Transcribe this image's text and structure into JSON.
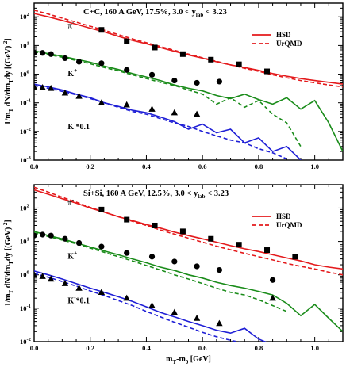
{
  "chart_data": [
    {
      "type": "line",
      "title": "C+C, 160 A GeV, 17.5%, 3.0 < y_lab < 3.23",
      "title_parts": {
        "main": "C+C, 160 A GeV, 17.5%, 3.0 < y",
        "sub": "lab",
        "tail": " < 3.23"
      },
      "xlabel": "m_T-m_0 [GeV]",
      "ylabel": "1/m_T dN/dm_T dy [(GeV)^-2]",
      "ylabel_parts": {
        "a": "1/m",
        "s1": "T",
        "b": " dN/dm",
        "s2": "T",
        "c": "dy [(GeV)",
        "sup": "-2",
        "d": "]"
      },
      "xlim": [
        0,
        1.1
      ],
      "ylim": [
        0.001,
        300
      ],
      "yscale": "log",
      "xticks": [
        "0.0",
        "0.2",
        "0.4",
        "0.6",
        "0.8",
        "1.0"
      ],
      "ytick_exponents": [
        "-3",
        "-2",
        "-1",
        "0",
        "1",
        "2"
      ],
      "show_xticklabels": true,
      "show_xlabel": false,
      "legend": {
        "placement": "top-right",
        "entries": [
          {
            "label": "HSD",
            "style": "solid",
            "color": "#e41a1c"
          },
          {
            "label": "UrQMD",
            "style": "dashed",
            "color": "#e41a1c"
          }
        ]
      },
      "series": [
        {
          "name": "π-",
          "label_main": "π",
          "label_sup": "-",
          "color": "#e41a1c",
          "marker": "square",
          "label_pos": [
            0.12,
            40
          ],
          "data_x": [
            0.24,
            0.33,
            0.43,
            0.53,
            0.63,
            0.73,
            0.83
          ],
          "data_y": [
            35,
            14,
            8.5,
            5.0,
            3.2,
            2.2,
            1.25
          ],
          "hsd_x": [
            0.0,
            0.05,
            0.1,
            0.15,
            0.2,
            0.25,
            0.3,
            0.35,
            0.4,
            0.45,
            0.5,
            0.55,
            0.6,
            0.65,
            0.7,
            0.75,
            0.8,
            0.85,
            0.9,
            0.95,
            1.0,
            1.05,
            1.1
          ],
          "hsd_y": [
            130,
            100,
            75,
            55,
            40,
            30,
            21,
            15,
            11.5,
            8.5,
            6.3,
            4.7,
            3.6,
            2.7,
            2.1,
            1.7,
            1.35,
            1.05,
            0.85,
            0.7,
            0.6,
            0.52,
            0.45
          ],
          "urqmd_x": [
            0.0,
            0.05,
            0.1,
            0.15,
            0.2,
            0.25,
            0.3,
            0.35,
            0.4,
            0.45,
            0.5,
            0.55,
            0.6,
            0.65,
            0.7,
            0.75,
            0.8,
            0.85,
            0.9,
            0.95,
            1.0,
            1.05,
            1.1
          ],
          "urqmd_y": [
            170,
            125,
            90,
            65,
            47,
            34,
            24,
            17,
            12.5,
            9.2,
            6.8,
            5.0,
            3.7,
            2.8,
            2.1,
            1.6,
            1.25,
            0.95,
            0.75,
            0.6,
            0.5,
            0.42,
            0.36
          ]
        },
        {
          "name": "K+",
          "label_main": "K",
          "label_sup": "+",
          "color": "#1a8c1a",
          "marker": "circle",
          "label_pos": [
            0.12,
            0.85
          ],
          "data_x": [
            0.0,
            0.03,
            0.06,
            0.11,
            0.16,
            0.24,
            0.33,
            0.42,
            0.5,
            0.58,
            0.66
          ],
          "data_y": [
            5.5,
            5.5,
            5.0,
            3.6,
            2.7,
            2.4,
            1.4,
            0.95,
            0.6,
            0.5,
            0.55
          ],
          "hsd_x": [
            0.0,
            0.05,
            0.1,
            0.15,
            0.2,
            0.25,
            0.3,
            0.35,
            0.4,
            0.45,
            0.5,
            0.55,
            0.6,
            0.65,
            0.7,
            0.75,
            0.8,
            0.85,
            0.9,
            0.95,
            1.0,
            1.05,
            1.1
          ],
          "hsd_y": [
            6.5,
            5.2,
            4.2,
            3.3,
            2.6,
            1.9,
            1.45,
            1.05,
            0.8,
            0.6,
            0.42,
            0.32,
            0.26,
            0.18,
            0.14,
            0.2,
            0.13,
            0.09,
            0.15,
            0.06,
            0.12,
            0.02,
            0.002
          ],
          "urqmd_x": [
            0.0,
            0.05,
            0.1,
            0.15,
            0.2,
            0.25,
            0.3,
            0.35,
            0.4,
            0.45,
            0.5,
            0.55,
            0.6,
            0.65,
            0.7,
            0.75,
            0.8,
            0.85,
            0.9,
            0.95
          ],
          "urqmd_y": [
            6.0,
            4.8,
            3.9,
            3.0,
            2.3,
            1.7,
            1.3,
            0.95,
            0.7,
            0.52,
            0.4,
            0.28,
            0.2,
            0.09,
            0.15,
            0.07,
            0.12,
            0.04,
            0.02,
            0.003
          ]
        },
        {
          "name": "K-*0.1",
          "label_main": "K",
          "label_sup": "-",
          "label_tail": "*0.1",
          "color": "#1f1fd6",
          "marker": "triangle",
          "label_pos": [
            0.12,
            0.012
          ],
          "data_x": [
            0.0,
            0.03,
            0.06,
            0.11,
            0.16,
            0.24,
            0.33,
            0.42,
            0.5,
            0.58
          ],
          "data_y": [
            0.36,
            0.34,
            0.32,
            0.22,
            0.17,
            0.1,
            0.085,
            0.06,
            0.045,
            0.04
          ],
          "hsd_x": [
            0.0,
            0.05,
            0.1,
            0.15,
            0.2,
            0.25,
            0.3,
            0.35,
            0.4,
            0.45,
            0.5,
            0.55,
            0.6,
            0.65,
            0.7,
            0.75,
            0.8,
            0.85,
            0.9,
            0.95
          ],
          "hsd_y": [
            0.45,
            0.36,
            0.28,
            0.2,
            0.15,
            0.1,
            0.075,
            0.055,
            0.045,
            0.032,
            0.022,
            0.012,
            0.018,
            0.009,
            0.012,
            0.004,
            0.006,
            0.002,
            0.003,
            0.001
          ],
          "urqmd_x": [
            0.0,
            0.05,
            0.1,
            0.15,
            0.2,
            0.25,
            0.3,
            0.35,
            0.4,
            0.45,
            0.5,
            0.55,
            0.6,
            0.65,
            0.7,
            0.75,
            0.8,
            0.85,
            0.9
          ],
          "urqmd_y": [
            0.4,
            0.32,
            0.25,
            0.19,
            0.14,
            0.1,
            0.07,
            0.05,
            0.04,
            0.028,
            0.02,
            0.015,
            0.01,
            0.007,
            0.005,
            0.004,
            0.0025,
            0.0018,
            0.0011
          ]
        }
      ]
    },
    {
      "type": "line",
      "title": "Si+Si, 160 A GeV, 12.5%, 3.0 < y_lab < 3.23",
      "title_parts": {
        "main": "Si+Si, 160 A GeV, 12.5%, 3.0 < y",
        "sub": "lab",
        "tail": " < 3.23"
      },
      "xlabel": "m_T-m_0 [GeV]",
      "xlabel_parts": {
        "a": "m",
        "s1": "T",
        "b": "-m",
        "s2": "0",
        "c": " [GeV]"
      },
      "ylabel": "1/m_T dN/dm_T dy [(GeV)^-2]",
      "ylabel_parts": {
        "a": "1/m",
        "s1": "T",
        "b": " dN/dm",
        "s2": "T",
        "c": "dy [(GeV)",
        "sup": "-2",
        "d": "]"
      },
      "xlim": [
        0,
        1.1
      ],
      "ylim": [
        0.01,
        500
      ],
      "yscale": "log",
      "xticks": [
        "0.0",
        "0.2",
        "0.4",
        "0.6",
        "0.8",
        "1.0"
      ],
      "ytick_exponents": [
        "-2",
        "-1",
        "0",
        "1",
        "2"
      ],
      "show_xticklabels": true,
      "show_xlabel": true,
      "legend": {
        "placement": "top-right",
        "entries": [
          {
            "label": "HSD",
            "style": "solid",
            "color": "#e41a1c"
          },
          {
            "label": "UrQMD",
            "style": "dashed",
            "color": "#e41a1c"
          }
        ]
      },
      "series": [
        {
          "name": "π-",
          "label_main": "π",
          "label_sup": "-",
          "color": "#e41a1c",
          "marker": "square",
          "label_pos": [
            0.12,
            120
          ],
          "data_x": [
            0.24,
            0.33,
            0.43,
            0.53,
            0.63,
            0.73,
            0.83,
            0.93
          ],
          "data_y": [
            90,
            45,
            30,
            20,
            12,
            8,
            5.5,
            3.5
          ],
          "hsd_x": [
            0.0,
            0.05,
            0.1,
            0.15,
            0.2,
            0.25,
            0.3,
            0.35,
            0.4,
            0.45,
            0.5,
            0.55,
            0.6,
            0.65,
            0.7,
            0.75,
            0.8,
            0.85,
            0.9,
            0.95,
            1.0,
            1.05,
            1.1
          ],
          "hsd_y": [
            350,
            260,
            190,
            140,
            100,
            75,
            55,
            42,
            32,
            25,
            19,
            15,
            12,
            9.5,
            7.5,
            6,
            5,
            4,
            3.2,
            2.6,
            2.0,
            1.7,
            1.5
          ],
          "urqmd_x": [
            0.0,
            0.05,
            0.1,
            0.15,
            0.2,
            0.25,
            0.3,
            0.35,
            0.4,
            0.45,
            0.5,
            0.55,
            0.6,
            0.65,
            0.7,
            0.75,
            0.8,
            0.85,
            0.9,
            0.95,
            1.0,
            1.05,
            1.1
          ],
          "urqmd_y": [
            420,
            300,
            210,
            150,
            105,
            76,
            55,
            40,
            30,
            22,
            16.5,
            12.5,
            9.5,
            7.2,
            5.6,
            4.4,
            3.5,
            2.8,
            2.2,
            1.8,
            1.5,
            1.2,
            1.0
          ]
        },
        {
          "name": "K+",
          "label_main": "K",
          "label_sup": "+",
          "color": "#1a8c1a",
          "marker": "circle",
          "label_pos": [
            0.12,
            3.0
          ],
          "data_x": [
            0.0,
            0.03,
            0.06,
            0.11,
            0.16,
            0.24,
            0.33,
            0.42,
            0.5,
            0.58,
            0.66,
            0.85
          ],
          "data_y": [
            15,
            16,
            15,
            12,
            9,
            7,
            4.5,
            3.5,
            2.5,
            1.8,
            1.4,
            0.7
          ],
          "hsd_x": [
            0.0,
            0.05,
            0.1,
            0.15,
            0.2,
            0.25,
            0.3,
            0.35,
            0.4,
            0.45,
            0.5,
            0.55,
            0.6,
            0.65,
            0.7,
            0.75,
            0.8,
            0.85,
            0.9,
            0.95,
            1.0,
            1.05,
            1.1
          ],
          "hsd_y": [
            20,
            15,
            12,
            9,
            6.8,
            5.2,
            4,
            3,
            2.3,
            1.7,
            1.35,
            1.0,
            0.8,
            0.6,
            0.48,
            0.4,
            0.32,
            0.25,
            0.14,
            0.06,
            0.13,
            0.05,
            0.02
          ],
          "urqmd_x": [
            0.0,
            0.05,
            0.1,
            0.15,
            0.2,
            0.25,
            0.3,
            0.35,
            0.4,
            0.45,
            0.5,
            0.55,
            0.6,
            0.65,
            0.7,
            0.75,
            0.8,
            0.85,
            0.9
          ],
          "urqmd_y": [
            18,
            14,
            11,
            8.5,
            6.3,
            4.7,
            3.5,
            2.6,
            1.9,
            1.4,
            1.0,
            0.75,
            0.55,
            0.4,
            0.3,
            0.25,
            0.18,
            0.12,
            0.08
          ]
        },
        {
          "name": "K-*0.1",
          "label_main": "K",
          "label_sup": "-",
          "label_tail": "*0.1",
          "color": "#1f1fd6",
          "marker": "triangle",
          "label_pos": [
            0.12,
            0.14
          ],
          "data_x": [
            0.0,
            0.03,
            0.06,
            0.11,
            0.16,
            0.24,
            0.33,
            0.42,
            0.5,
            0.58,
            0.66,
            0.85
          ],
          "data_y": [
            1.0,
            0.9,
            0.75,
            0.55,
            0.4,
            0.3,
            0.2,
            0.12,
            0.075,
            0.05,
            0.035,
            0.2
          ],
          "hsd_x": [
            0.0,
            0.05,
            0.1,
            0.15,
            0.2,
            0.25,
            0.3,
            0.35,
            0.4,
            0.45,
            0.5,
            0.55,
            0.6,
            0.65,
            0.7,
            0.75,
            0.8,
            0.85
          ],
          "hsd_y": [
            1.3,
            1.0,
            0.75,
            0.55,
            0.4,
            0.3,
            0.22,
            0.16,
            0.11,
            0.075,
            0.055,
            0.04,
            0.03,
            0.022,
            0.018,
            0.025,
            0.012,
            0.008
          ],
          "urqmd_x": [
            0.0,
            0.05,
            0.1,
            0.15,
            0.2,
            0.25,
            0.3,
            0.35,
            0.4,
            0.45,
            0.5,
            0.55,
            0.6,
            0.65,
            0.7,
            0.75
          ],
          "urqmd_y": [
            1.1,
            0.85,
            0.63,
            0.46,
            0.33,
            0.24,
            0.17,
            0.12,
            0.08,
            0.055,
            0.038,
            0.027,
            0.019,
            0.014,
            0.011,
            0.009
          ]
        }
      ]
    }
  ]
}
